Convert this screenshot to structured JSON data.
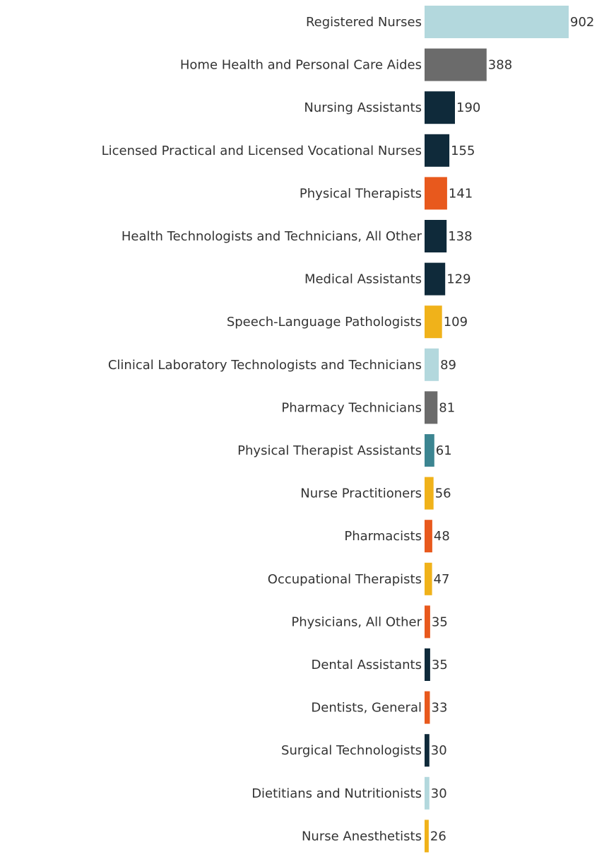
{
  "chart_data": {
    "type": "bar",
    "orientation": "horizontal",
    "categories": [
      "Registered Nurses",
      "Home Health and Personal Care Aides",
      "Nursing Assistants",
      "Licensed Practical and Licensed Vocational Nurses",
      "Physical Therapists",
      "Health Technologists and Technicians, All Other",
      "Medical Assistants",
      "Speech-Language Pathologists",
      "Clinical Laboratory Technologists and Technicians",
      "Pharmacy Technicians",
      "Physical Therapist Assistants",
      "Nurse Practitioners",
      "Pharmacists",
      "Occupational Therapists",
      "Physicians, All Other",
      "Dental Assistants",
      "Dentists, General",
      "Surgical Technologists",
      "Dietitians and Nutritionists",
      "Nurse Anesthetists"
    ],
    "values": [
      902,
      388,
      190,
      155,
      141,
      138,
      129,
      109,
      89,
      81,
      61,
      56,
      48,
      47,
      35,
      35,
      33,
      30,
      30,
      26
    ],
    "value_labels": [
      "902",
      "388",
      "190",
      "155",
      "141",
      "138",
      "129",
      "109",
      "89",
      "81",
      "61",
      "56",
      "48",
      "47",
      "35",
      "35",
      "33",
      "30",
      "30",
      "26"
    ],
    "colors": [
      "#b3d8dd",
      "#6b6b6b",
      "#0f2a3a",
      "#0f2a3a",
      "#e8591d",
      "#0f2a3a",
      "#0f2a3a",
      "#f0b21a",
      "#b3d8dd",
      "#6b6b6b",
      "#3c8591",
      "#f0b21a",
      "#e8591d",
      "#f0b21a",
      "#e8591d",
      "#0f2a3a",
      "#e8591d",
      "#0f2a3a",
      "#b3d8dd",
      "#f0b21a"
    ],
    "xlim": [
      0,
      902
    ],
    "grid": false,
    "legend": "none"
  }
}
